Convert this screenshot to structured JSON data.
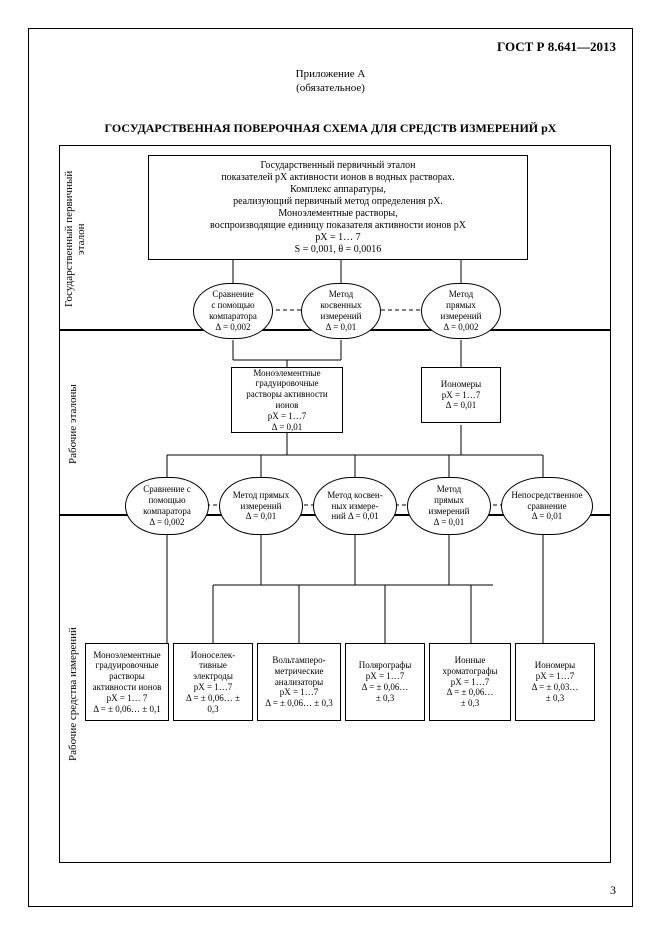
{
  "doc_code": "ГОСТ Р 8.641—2013",
  "appendix_line1": "Приложение А",
  "appendix_line2": "(обязательное)",
  "title": "ГОСУДАРСТВЕННАЯ ПОВЕРОЧНАЯ СХЕМА ДЛЯ СРЕДСТВ ИЗМЕРЕНИЙ pX",
  "page_number": "3",
  "side_labels": {
    "l1": "Государственный первичный\nэталон",
    "l2": "Рабочие эталоны",
    "l3": "Рабочие средства измерений"
  },
  "nodes": {
    "primary": "Государственный первичный эталон\nпоказателей pX активности ионов в водных растворах.\nКомплекс аппаратуры,\nреализующий первичный метод определения pX.\nМоноэлементные растворы,\nвоспроизводящие единицу показателя активности ионов pX\npX = 1… 7\nS = 0,001, θ = 0,0016",
    "r1_cmp": "Сравнение\nс помощью\nкомпаратора\nΔ = 0,002",
    "r1_ind": "Метод\nкосвенных\nизмерений\nΔ = 0,01",
    "r1_dir": "Метод\nпрямых\nизмерений\nΔ = 0,002",
    "r2_sol": "Моноэлементные\nградуировочные\nрастворы активности\nионов\npX = 1…7\nΔ = 0,01",
    "r2_ion": "Иономеры\npX = 1…7\nΔ = 0,01",
    "r3_cmp": "Сравнение с\nпомощью\nкомпаратора\nΔ = 0,002",
    "r3_dir": "Метод прямых\nизмерений\nΔ = 0,01",
    "r3_ind": "Метод косвен-\nных измере-\nний Δ = 0,01",
    "r3_dir2": "Метод\nпрямых\nизмерений\nΔ = 0,01",
    "r3_comp": "Непосредственное\nсравнение\nΔ = 0,01",
    "b1": "Моноэлементные\nградуировочные\nрастворы\nактивности ионов\npX = 1… 7\nΔ = ± 0,06… ± 0,1",
    "b2": "Ионоселек-\nтивные\nэлектроды\npX = 1…7\nΔ = ± 0,06… ±\n0,3",
    "b3": "Вольтамперо-\nметрические\nанализаторы\npX = 1…7\nΔ = ± 0,06… ± 0,3",
    "b4": "Полярографы\npX = 1…7\nΔ = ± 0,06…\n± 0,3",
    "b5": "Ионные\nхроматографы\npX = 1…7\nΔ = ± 0,06…\n± 0,3",
    "b6": "Иономеры\npX = 1…7\nΔ = ± 0,03…\n± 0,3"
  },
  "layout": {
    "bg": "#ffffff",
    "stroke": "#000000"
  }
}
